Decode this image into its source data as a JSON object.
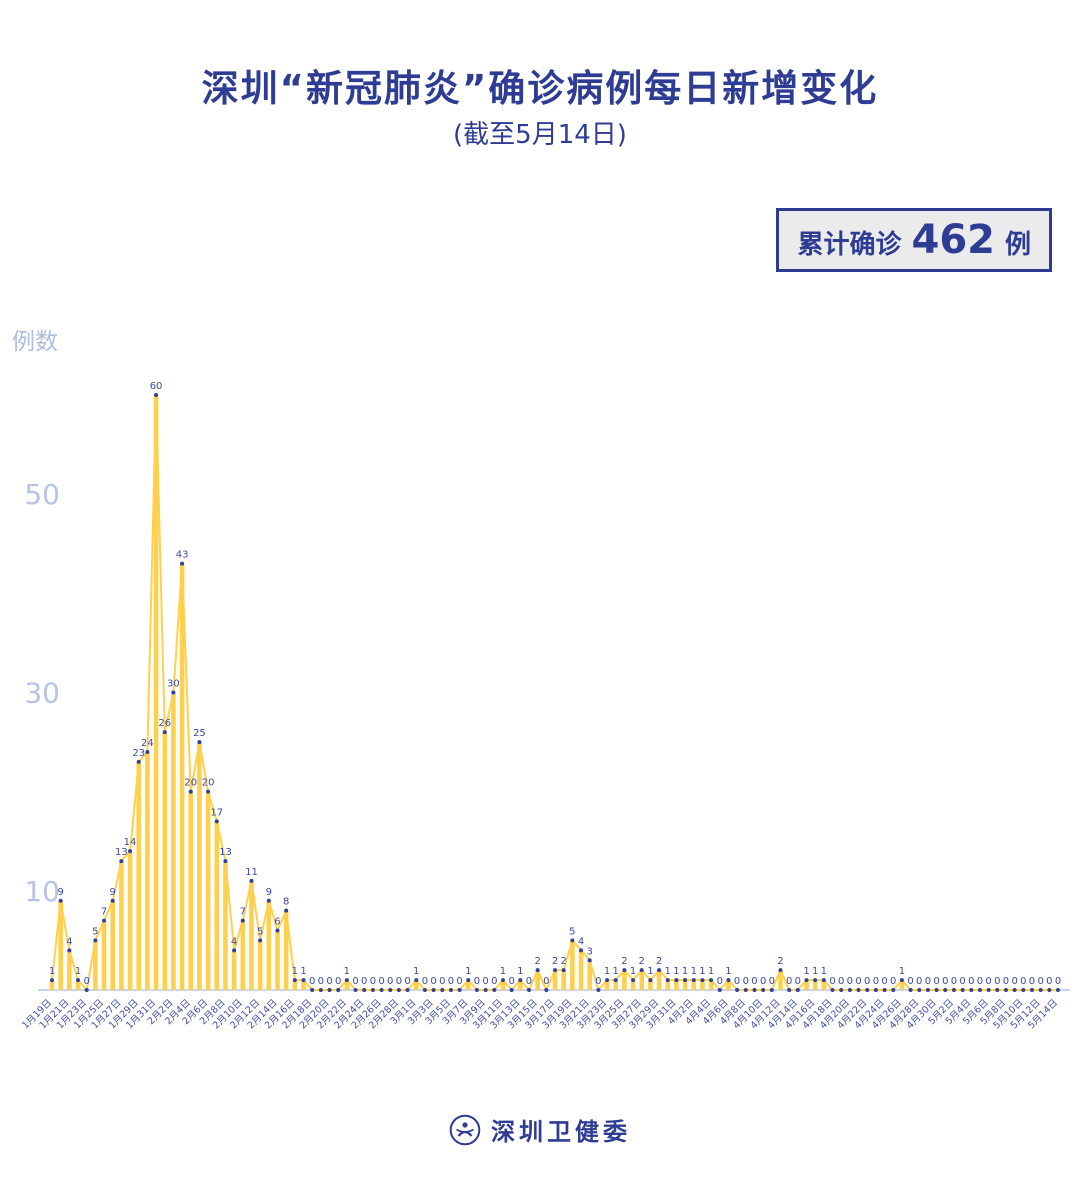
{
  "header": {
    "title": "深圳“新冠肺炎”确诊病例每日新增变化",
    "subtitle": "(截至5月14日)"
  },
  "badge": {
    "label": "累计确诊",
    "value": "462",
    "unit": "例"
  },
  "footer": {
    "org": "深圳卫健委"
  },
  "chart_data": {
    "type": "bar",
    "title": "深圳“新冠肺炎”确诊病例每日新增变化",
    "subtitle": "(截至5月14日)",
    "ylabel": "例数",
    "yticks": [
      10,
      30,
      50
    ],
    "ylim": [
      0,
      62
    ],
    "x_label_every": 2,
    "legend": "none",
    "grid": "off",
    "cumulative_total": 462,
    "categories": [
      "1月19日",
      "1月20日",
      "1月21日",
      "1月22日",
      "1月23日",
      "1月24日",
      "1月25日",
      "1月26日",
      "1月27日",
      "1月28日",
      "1月29日",
      "1月30日",
      "1月31日",
      "2月1日",
      "2月2日",
      "2月3日",
      "2月4日",
      "2月5日",
      "2月6日",
      "2月7日",
      "2月8日",
      "2月9日",
      "2月10日",
      "2月11日",
      "2月12日",
      "2月13日",
      "2月14日",
      "2月15日",
      "2月16日",
      "2月17日",
      "2月18日",
      "2月19日",
      "2月20日",
      "2月21日",
      "2月22日",
      "2月23日",
      "2月24日",
      "2月25日",
      "2月26日",
      "2月27日",
      "2月28日",
      "2月29日",
      "3月1日",
      "3月2日",
      "3月3日",
      "3月4日",
      "3月5日",
      "3月6日",
      "3月7日",
      "3月8日",
      "3月9日",
      "3月10日",
      "3月11日",
      "3月12日",
      "3月13日",
      "3月14日",
      "3月15日",
      "3月16日",
      "3月17日",
      "3月18日",
      "3月19日",
      "3月20日",
      "3月21日",
      "3月22日",
      "3月23日",
      "3月24日",
      "3月25日",
      "3月26日",
      "3月27日",
      "3月28日",
      "3月29日",
      "3月30日",
      "3月31日",
      "4月1日",
      "4月2日",
      "4月3日",
      "4月4日",
      "4月5日",
      "4月6日",
      "4月7日",
      "4月8日",
      "4月9日",
      "4月10日",
      "4月11日",
      "4月12日",
      "4月13日",
      "4月14日",
      "4月15日",
      "4月16日",
      "4月17日",
      "4月18日",
      "4月19日",
      "4月20日",
      "4月21日",
      "4月22日",
      "4月23日",
      "4月24日",
      "4月25日",
      "4月26日",
      "4月27日",
      "4月28日",
      "4月29日",
      "4月30日",
      "5月1日",
      "5月2日",
      "5月3日",
      "5月4日",
      "5月5日",
      "5月6日",
      "5月7日",
      "5月8日",
      "5月9日",
      "5月10日",
      "5月11日",
      "5月12日",
      "5月13日",
      "5月14日"
    ],
    "values": [
      1,
      9,
      4,
      1,
      0,
      5,
      7,
      9,
      13,
      14,
      23,
      24,
      60,
      26,
      30,
      43,
      20,
      25,
      20,
      17,
      13,
      4,
      7,
      11,
      5,
      9,
      6,
      8,
      1,
      1,
      0,
      0,
      0,
      0,
      1,
      0,
      0,
      0,
      0,
      0,
      0,
      0,
      1,
      0,
      0,
      0,
      0,
      0,
      1,
      0,
      0,
      0,
      1,
      0,
      1,
      0,
      2,
      0,
      2,
      2,
      5,
      4,
      3,
      0,
      1,
      1,
      2,
      1,
      2,
      1,
      2,
      1,
      1,
      1,
      1,
      1,
      1,
      0,
      1,
      0,
      0,
      0,
      0,
      0,
      2,
      0,
      0,
      1,
      1,
      1,
      0,
      0,
      0,
      0,
      0,
      0,
      0,
      0,
      1,
      0,
      0,
      0,
      0,
      0,
      0,
      0,
      0,
      0,
      0,
      0,
      0,
      0,
      0,
      0,
      0,
      0,
      0
    ],
    "colors": {
      "bar": "#FFD04D",
      "line": "#FFD04D",
      "dot": "#32409A",
      "value_label": "#3A4AA0",
      "axis_label": "#3F4FA5",
      "ytick": "#B7C4E6",
      "axis_line": "#C9D5EF",
      "title": "#2E3C94",
      "badge_border": "#2E3C94",
      "badge_bg": "#EBEBEB"
    }
  }
}
